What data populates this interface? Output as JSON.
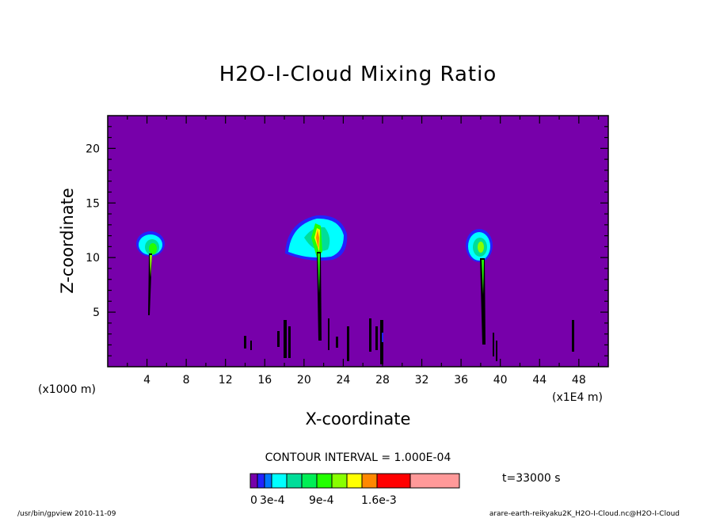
{
  "chart_data": {
    "type": "heatmap",
    "title": "H2O-I-Cloud Mixing Ratio",
    "xlabel": "X-coordinate",
    "ylabel": "Z-coordinate",
    "x_unit": "(x1E4 m)",
    "y_unit": "(x1000 m)",
    "xlim": [
      0,
      51
    ],
    "ylim": [
      0,
      23
    ],
    "x_ticks": [
      4,
      8,
      12,
      16,
      20,
      24,
      28,
      32,
      36,
      40,
      44,
      48
    ],
    "y_ticks": [
      5,
      10,
      15,
      20
    ],
    "contour_interval": "CONTOUR INTERVAL = 1.000E-04",
    "time_label": "t=33000 s",
    "colorbar": {
      "colors": [
        "#7700aa",
        "#2222ff",
        "#0077ff",
        "#00ffff",
        "#00dd99",
        "#00ee55",
        "#22ff00",
        "#88ff00",
        "#ffff00",
        "#ff8800",
        "#ff0000",
        "#ff9999"
      ],
      "tick_labels": [
        "0",
        "3e-4",
        "9e-4",
        "1.6e-3"
      ]
    },
    "footer_left": "/usr/bin/gpview   2010-11-09",
    "footer_right": "arare-earth-reikyaku2K_H2O-I-Cloud.nc@H2O-I-Cloud"
  }
}
